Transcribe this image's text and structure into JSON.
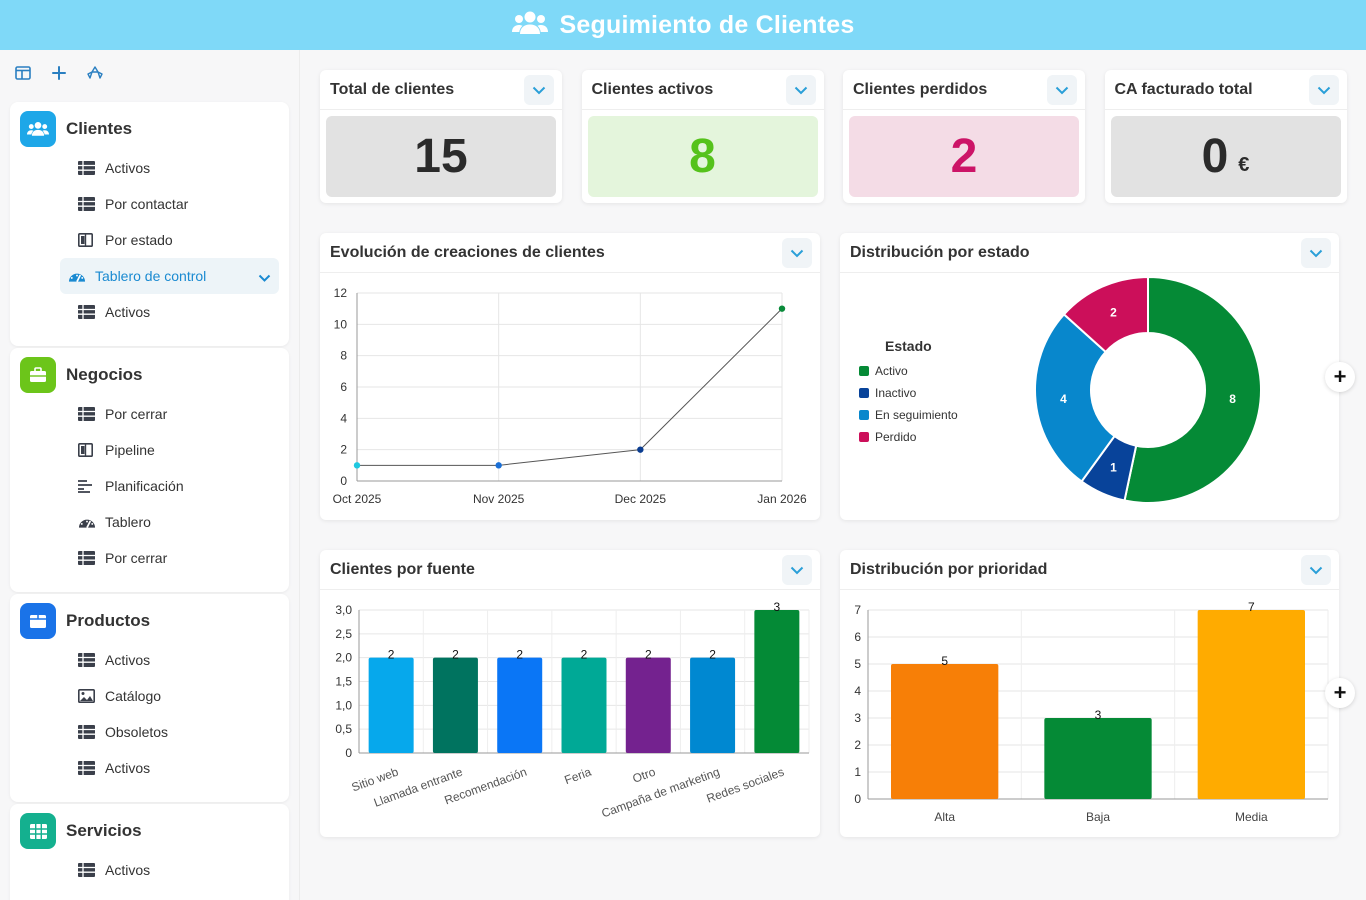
{
  "header": {
    "title": "Seguimiento de Clientes",
    "icon": "users-icon"
  },
  "sidebar": {
    "tools": [
      "layout-icon",
      "plus-icon",
      "recycle-icon"
    ],
    "groups": [
      {
        "title": "Clientes",
        "color": "#1ea7e8",
        "icon": "users-icon",
        "items": [
          {
            "label": "Activos",
            "icon": "table-icon"
          },
          {
            "label": "Por contactar",
            "icon": "table-icon"
          },
          {
            "label": "Por estado",
            "icon": "kanban-icon"
          },
          {
            "label": "Tablero de control",
            "icon": "dashboard-icon",
            "active": true
          },
          {
            "label": "Activos",
            "icon": "table-icon"
          }
        ]
      },
      {
        "title": "Negocios",
        "color": "#6cc51a",
        "icon": "briefcase-icon",
        "items": [
          {
            "label": "Por cerrar",
            "icon": "table-icon"
          },
          {
            "label": "Pipeline",
            "icon": "kanban-icon"
          },
          {
            "label": "Planificación",
            "icon": "gantt-icon"
          },
          {
            "label": "Tablero",
            "icon": "dashboard-icon"
          },
          {
            "label": "Por cerrar",
            "icon": "table-icon"
          }
        ]
      },
      {
        "title": "Productos",
        "color": "#1a73e8",
        "icon": "box-icon",
        "items": [
          {
            "label": "Activos",
            "icon": "table-icon"
          },
          {
            "label": "Catálogo",
            "icon": "image-icon"
          },
          {
            "label": "Obsoletos",
            "icon": "table-icon"
          },
          {
            "label": "Activos",
            "icon": "table-icon"
          }
        ]
      },
      {
        "title": "Servicios",
        "color": "#14b08f",
        "icon": "grid-icon",
        "items": [
          {
            "label": "Activos",
            "icon": "table-icon"
          }
        ]
      }
    ]
  },
  "kpis": [
    {
      "title": "Total de clientes",
      "value": "15",
      "unit": "",
      "bg": "#e2e2e2",
      "fg": "#2b2b2b"
    },
    {
      "title": "Clientes activos",
      "value": "8",
      "unit": "",
      "bg": "#e4f5dc",
      "fg": "#55c21b"
    },
    {
      "title": "Clientes perdidos",
      "value": "2",
      "unit": "",
      "bg": "#f4dce6",
      "fg": "#cc1467"
    },
    {
      "title": "CA facturado total",
      "value": "0",
      "unit": "€",
      "bg": "#e2e2e2",
      "fg": "#2b2b2b"
    }
  ],
  "panels": {
    "evolution": {
      "title": "Evolución de creaciones de clientes"
    },
    "distribution": {
      "title": "Distribución por estado"
    },
    "source": {
      "title": "Clientes por fuente"
    },
    "priority": {
      "title": "Distribución por prioridad"
    }
  },
  "chart_data": [
    {
      "id": "evolution",
      "type": "line",
      "x": [
        "Oct 2025",
        "Nov 2025",
        "Dec 2025",
        "Jan 2026"
      ],
      "series": [
        {
          "values": [
            1,
            1,
            2,
            11
          ],
          "point_colors": [
            "#1ec8e0",
            "#1a6fd6",
            "#0b3d91",
            "#0a8a3a"
          ]
        }
      ],
      "ylim": [
        0,
        12
      ],
      "yticks": [
        "0",
        "2",
        "4",
        "6",
        "8",
        "10",
        "12"
      ],
      "grid": true
    },
    {
      "id": "distribution",
      "type": "pie",
      "donut": true,
      "legend_title": "Estado",
      "legend_position": "left",
      "labels": [
        "Activo",
        "Inactivo",
        "En seguimiento",
        "Perdido"
      ],
      "values": [
        8,
        1,
        4,
        2
      ],
      "colors": [
        "#058a36",
        "#08439a",
        "#0887cc",
        "#cc0f5a"
      ]
    },
    {
      "id": "source",
      "type": "bar",
      "categories": [
        "Sitio web",
        "Llamada entrante",
        "Recomendación",
        "Feria",
        "Otro",
        "Campaña de marketing",
        "Redes sociales"
      ],
      "values": [
        2,
        2,
        2,
        2,
        2,
        2,
        3
      ],
      "colors": [
        "#06a8ec",
        "#00735f",
        "#0a76f6",
        "#00a996",
        "#74228f",
        "#0088d1",
        "#048a36"
      ],
      "ylim": [
        0,
        3
      ],
      "yticks": [
        "0",
        "0,5",
        "1,0",
        "1,5",
        "2,0",
        "2,5",
        "3,0"
      ],
      "grid": true
    },
    {
      "id": "priority",
      "type": "bar",
      "categories": [
        "Alta",
        "Baja",
        "Media"
      ],
      "values": [
        5,
        3,
        7
      ],
      "colors": [
        "#f77f07",
        "#058a36",
        "#ffab00"
      ],
      "ylim": [
        0,
        7
      ],
      "yticks": [
        "0",
        "1",
        "2",
        "3",
        "4",
        "5",
        "6",
        "7"
      ],
      "grid": true
    }
  ]
}
